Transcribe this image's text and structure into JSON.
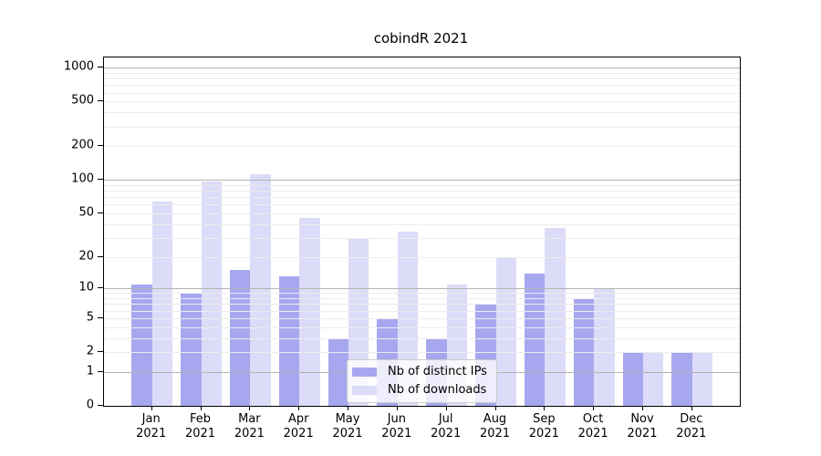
{
  "title": "cobindR 2021",
  "legend": {
    "items": [
      {
        "label": "Nb of distinct IPs",
        "color": "#a7a7f0"
      },
      {
        "label": "Nb of downloads",
        "color": "#dcdcf8"
      }
    ]
  },
  "chart_data": {
    "type": "bar",
    "title": "cobindR 2021",
    "categories": [
      "Jan 2021",
      "Feb 2021",
      "Mar 2021",
      "Apr 2021",
      "May 2021",
      "Jun 2021",
      "Jul 2021",
      "Aug 2021",
      "Sep 2021",
      "Oct 2021",
      "Nov 2021",
      "Dec 2021"
    ],
    "series": [
      {
        "name": "Nb of distinct IPs",
        "color": "#a7a7f0",
        "values": [
          11,
          9,
          15,
          13,
          3,
          5,
          3,
          7,
          14,
          8,
          2,
          2
        ]
      },
      {
        "name": "Nb of downloads",
        "color": "#dcdcf8",
        "values": [
          64,
          97,
          112,
          45,
          30,
          34,
          11,
          20,
          37,
          10,
          2,
          2
        ]
      }
    ],
    "xlabel": "",
    "ylabel": "",
    "yticks": [
      0,
      1,
      2,
      5,
      10,
      20,
      50,
      100,
      200,
      500,
      1000
    ],
    "ylim": [
      0,
      1000
    ],
    "y_scale": "log10(1+v)",
    "grid": true,
    "major_gridline_values": [
      1,
      10,
      100,
      1000
    ],
    "minor_gridline_steps": [
      2,
      3,
      4,
      5,
      6,
      7,
      8,
      9
    ],
    "legend_position": "inside-bottom-center"
  }
}
